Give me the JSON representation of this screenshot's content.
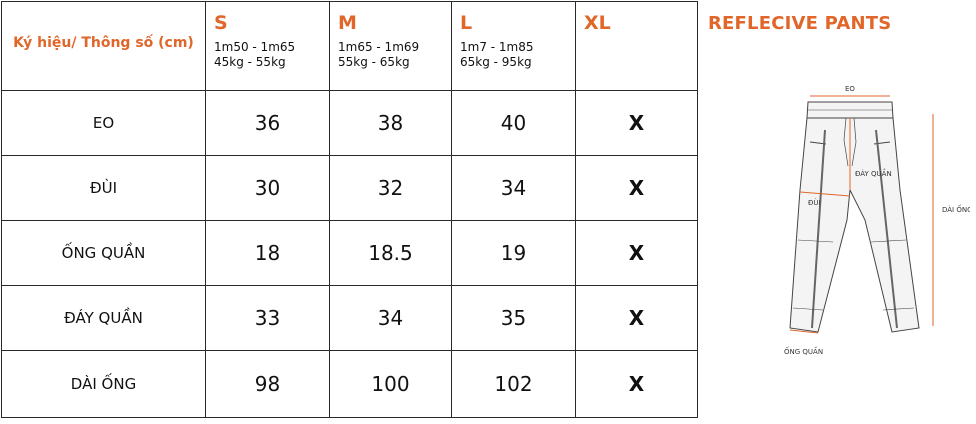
{
  "table": {
    "corner_label": "Ký hiệu/ Thông số (cm)",
    "sizes": [
      {
        "name": "S",
        "height": "1m50 - 1m65",
        "weight": "45kg - 55kg"
      },
      {
        "name": "M",
        "height": "1m65 - 1m69",
        "weight": "55kg - 65kg"
      },
      {
        "name": "L",
        "height": "1m7 - 1m85",
        "weight": "65kg - 95kg"
      },
      {
        "name": "XL",
        "height": "",
        "weight": ""
      }
    ],
    "rows": [
      {
        "label": "EO",
        "values": [
          "36",
          "38",
          "40",
          "X"
        ]
      },
      {
        "label": "ĐÙI",
        "values": [
          "30",
          "32",
          "34",
          "X"
        ]
      },
      {
        "label": "ỐNG QUẦN",
        "values": [
          "18",
          "18.5",
          "19",
          "X"
        ]
      },
      {
        "label": "ĐÁY QUẦN",
        "values": [
          "33",
          "34",
          "35",
          "X"
        ]
      },
      {
        "label": "DÀI ỐNG",
        "values": [
          "98",
          "100",
          "102",
          "X"
        ]
      }
    ]
  },
  "product": {
    "title": "REFLECIVE PANTS",
    "diagram_labels": {
      "eo": "EO",
      "dui": "ĐÙI",
      "day_quan": "ĐÁY QUẦN",
      "dai_ong": "DÀI ỐNG",
      "ong_quan": "ỐNG QUẦN"
    }
  },
  "colors": {
    "accent": "#e0662a",
    "border": "#2a2a2a",
    "measure_line": "#e0662a"
  }
}
